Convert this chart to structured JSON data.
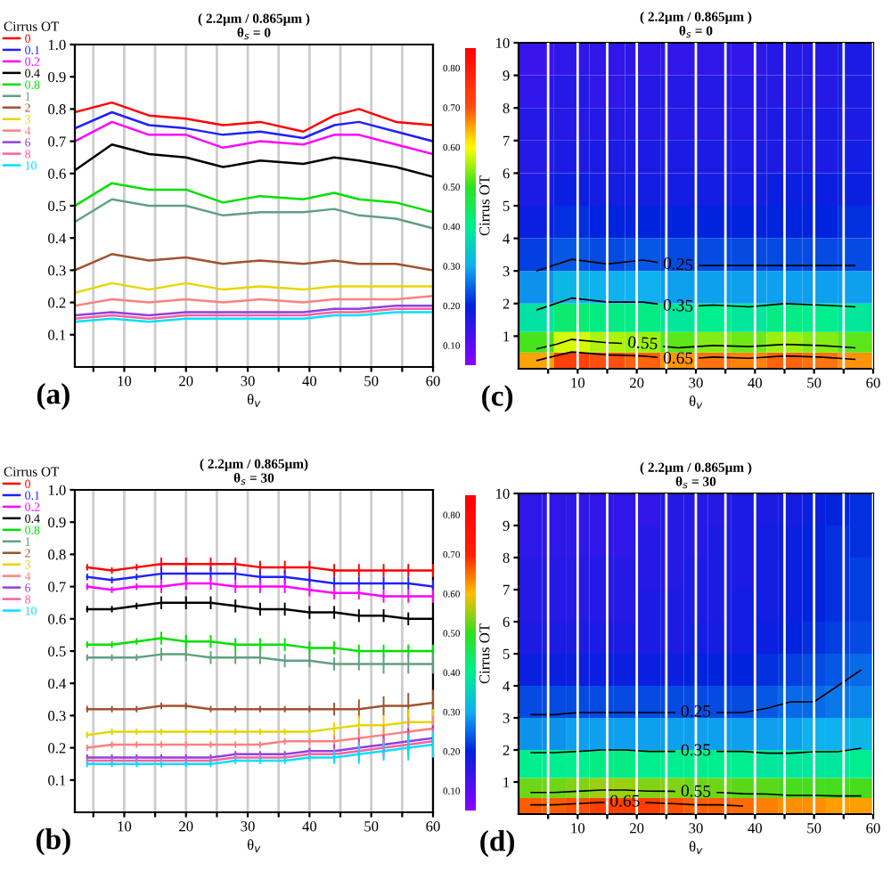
{
  "chart_data": [
    {
      "type": "line",
      "title": "( 2.2μm / 0.865μm )\nθ$_{s}$ = 0",
      "xlabel": "θ$_{v}$",
      "legend_title": "Cirrus OT",
      "legend": "top left",
      "grid": "x",
      "x": [
        2,
        8,
        14,
        20,
        26,
        32,
        39,
        44,
        48,
        54,
        60
      ],
      "xlim": [
        2,
        60
      ],
      "ylim": [
        0,
        1.0
      ],
      "xticks": [
        {
          "value": 5,
          "label": null
        },
        10,
        {
          "value": 15,
          "label": null
        },
        20,
        {
          "value": 25,
          "label": null
        },
        30,
        {
          "value": 35,
          "label": null
        },
        40,
        {
          "value": 45,
          "label": null
        },
        50,
        {
          "value": 55,
          "label": null
        },
        60
      ],
      "yticks": [
        0.1,
        0.2,
        0.3,
        0.4,
        0.5,
        0.6,
        0.7,
        0.8,
        0.9,
        {
          "value": 1.0,
          "label": "1.0"
        }
      ],
      "series": [
        {
          "name": "0",
          "color": "#ff0000",
          "values": [
            0.79,
            0.82,
            0.78,
            0.77,
            0.75,
            0.76,
            0.73,
            0.78,
            0.8,
            0.76,
            0.75
          ]
        },
        {
          "name": "0.1",
          "color": "#2020ff",
          "values": [
            0.74,
            0.79,
            0.75,
            0.74,
            0.72,
            0.73,
            0.71,
            0.75,
            0.76,
            0.73,
            0.7
          ]
        },
        {
          "name": "0.2",
          "color": "#ff00ff",
          "values": [
            0.7,
            0.76,
            0.72,
            0.72,
            0.68,
            0.7,
            0.69,
            0.72,
            0.72,
            0.69,
            0.66
          ]
        },
        {
          "name": "0.4",
          "color": "#000000",
          "values": [
            0.61,
            0.69,
            0.66,
            0.65,
            0.62,
            0.64,
            0.63,
            0.65,
            0.64,
            0.62,
            0.59
          ]
        },
        {
          "name": "0.8",
          "color": "#00e000",
          "values": [
            0.5,
            0.57,
            0.55,
            0.55,
            0.51,
            0.53,
            0.52,
            0.54,
            0.52,
            0.51,
            0.48
          ]
        },
        {
          "name": "1",
          "color": "#60a080",
          "values": [
            0.45,
            0.52,
            0.5,
            0.5,
            0.47,
            0.48,
            0.48,
            0.49,
            0.47,
            0.46,
            0.43
          ]
        },
        {
          "name": "2",
          "color": "#a0522d",
          "values": [
            0.3,
            0.35,
            0.33,
            0.34,
            0.32,
            0.33,
            0.32,
            0.33,
            0.32,
            0.32,
            0.3
          ]
        },
        {
          "name": "3",
          "color": "#e6d600",
          "values": [
            0.23,
            0.26,
            0.24,
            0.26,
            0.24,
            0.25,
            0.24,
            0.25,
            0.25,
            0.25,
            0.25
          ]
        },
        {
          "name": "4",
          "color": "#ff8080",
          "values": [
            0.19,
            0.21,
            0.2,
            0.21,
            0.2,
            0.21,
            0.2,
            0.21,
            0.21,
            0.21,
            0.22
          ]
        },
        {
          "name": "6",
          "color": "#9040e0",
          "values": [
            0.16,
            0.17,
            0.16,
            0.17,
            0.17,
            0.17,
            0.17,
            0.18,
            0.18,
            0.19,
            0.19
          ]
        },
        {
          "name": "8",
          "color": "#ff60a0",
          "values": [
            0.15,
            0.16,
            0.15,
            0.16,
            0.16,
            0.16,
            0.16,
            0.17,
            0.17,
            0.18,
            0.18
          ]
        },
        {
          "name": "10",
          "color": "#00e0ff",
          "values": [
            0.14,
            0.15,
            0.14,
            0.15,
            0.15,
            0.15,
            0.15,
            0.16,
            0.16,
            0.17,
            0.17
          ]
        }
      ],
      "annotations": [
        "(a)"
      ]
    },
    {
      "type": "heatmap",
      "title": "( 2.2μm / 0.865μm )\nθ$_{s}$ = 0",
      "xlabel": "θ$_{v}$",
      "ylabel": "Cirrus OT",
      "grid": "x",
      "x": [
        3,
        9,
        15,
        21,
        27,
        33,
        39,
        45,
        51,
        57
      ],
      "y": [
        0.25,
        0.75,
        1.5,
        2.5,
        3.5,
        4.5,
        5.5,
        6.5,
        7.5,
        8.5,
        9.5
      ],
      "xlim": [
        0,
        60
      ],
      "ylim": [
        0,
        10
      ],
      "xticks": [
        {
          "value": 5,
          "label": null
        },
        10,
        {
          "value": 15,
          "label": null
        },
        20,
        {
          "value": 25,
          "label": null
        },
        30,
        {
          "value": 35,
          "label": null
        },
        40,
        {
          "value": 45,
          "label": null
        },
        50,
        {
          "value": 55,
          "label": null
        },
        60
      ],
      "yticks": [
        1,
        2,
        3,
        4,
        5,
        6,
        7,
        8,
        9,
        10
      ],
      "clim": [
        0.05,
        0.85
      ],
      "cticks": [
        {
          "value": 0.1,
          "label": "0.10"
        },
        {
          "value": 0.2,
          "label": "0.20"
        },
        {
          "value": 0.3,
          "label": "0.30"
        },
        {
          "value": 0.4,
          "label": "0.40"
        },
        {
          "value": 0.5,
          "label": "0.50"
        },
        {
          "value": 0.6,
          "label": "0.60"
        },
        {
          "value": 0.7,
          "label": "0.70"
        },
        {
          "value": 0.8,
          "label": "0.80"
        }
      ],
      "colors": [
        "#8a00ff",
        "#0022dd",
        "#10b0f0",
        "#00ee90",
        "#30e020",
        "#ffff00",
        "#ff5010",
        "#ff0000"
      ],
      "cells": [
        [
          0.65,
          0.73,
          0.7,
          0.69,
          0.66,
          0.68,
          0.67,
          0.69,
          0.68,
          0.66
        ],
        [
          0.51,
          0.58,
          0.56,
          0.55,
          0.52,
          0.54,
          0.53,
          0.55,
          0.54,
          0.52
        ],
        [
          0.38,
          0.43,
          0.41,
          0.41,
          0.39,
          0.4,
          0.39,
          0.41,
          0.4,
          0.39
        ],
        [
          0.28,
          0.31,
          0.3,
          0.3,
          0.29,
          0.29,
          0.29,
          0.29,
          0.29,
          0.29
        ],
        [
          0.22,
          0.24,
          0.23,
          0.24,
          0.23,
          0.23,
          0.23,
          0.23,
          0.23,
          0.23
        ],
        [
          0.19,
          0.21,
          0.2,
          0.2,
          0.2,
          0.2,
          0.2,
          0.2,
          0.2,
          0.21
        ],
        [
          0.17,
          0.19,
          0.18,
          0.18,
          0.18,
          0.18,
          0.18,
          0.19,
          0.19,
          0.19
        ],
        [
          0.16,
          0.17,
          0.17,
          0.17,
          0.17,
          0.17,
          0.17,
          0.17,
          0.17,
          0.18
        ],
        [
          0.16,
          0.16,
          0.16,
          0.16,
          0.16,
          0.16,
          0.16,
          0.17,
          0.17,
          0.17
        ],
        [
          0.15,
          0.16,
          0.15,
          0.16,
          0.16,
          0.16,
          0.16,
          0.16,
          0.16,
          0.17
        ],
        [
          0.14,
          0.15,
          0.15,
          0.15,
          0.15,
          0.15,
          0.15,
          0.16,
          0.16,
          0.17
        ]
      ],
      "annotations": [
        "0.25",
        "0.35",
        "0.55",
        "0.65",
        "(c)"
      ]
    },
    {
      "type": "line",
      "title": "( 2.2μm / 0.865μm)\nθ$_{s}$ = 30",
      "xlabel": "θ$_{v}$",
      "legend_title": "Cirrus OT",
      "legend": "top left",
      "grid": "x",
      "x": [
        4,
        8,
        12,
        16,
        20,
        24,
        28,
        32,
        36,
        40,
        44,
        48,
        52,
        56,
        60
      ],
      "xlim": [
        2,
        60
      ],
      "ylim": [
        0,
        1.0
      ],
      "xticks": [
        {
          "value": 5,
          "label": null
        },
        10,
        {
          "value": 15,
          "label": null
        },
        20,
        {
          "value": 25,
          "label": null
        },
        30,
        {
          "value": 35,
          "label": null
        },
        40,
        {
          "value": 45,
          "label": null
        },
        50,
        {
          "value": 55,
          "label": null
        },
        60
      ],
      "yticks": [
        0.1,
        0.2,
        0.3,
        0.4,
        0.5,
        0.6,
        0.7,
        0.8,
        0.9,
        {
          "value": 1.0,
          "label": "1.0"
        }
      ],
      "series": [
        {
          "name": "0",
          "color": "#ff0000",
          "values": [
            0.76,
            0.75,
            0.76,
            0.77,
            0.77,
            0.77,
            0.77,
            0.76,
            0.76,
            0.76,
            0.75,
            0.75,
            0.75,
            0.75,
            0.75
          ],
          "errors": [
            0.01,
            0.01,
            0.01,
            0.02,
            0.02,
            0.02,
            0.02,
            0.02,
            0.02,
            0.02,
            0.02,
            0.02,
            0.02,
            0.02,
            0.02
          ]
        },
        {
          "name": "0.1",
          "color": "#2020ff",
          "values": [
            0.73,
            0.72,
            0.73,
            0.74,
            0.74,
            0.74,
            0.74,
            0.73,
            0.73,
            0.72,
            0.71,
            0.71,
            0.71,
            0.71,
            0.7
          ],
          "errors": [
            0.01,
            0.01,
            0.01,
            0.02,
            0.02,
            0.02,
            0.02,
            0.02,
            0.02,
            0.02,
            0.02,
            0.02,
            0.02,
            0.02,
            0.02
          ]
        },
        {
          "name": "0.2",
          "color": "#ff00ff",
          "values": [
            0.7,
            0.69,
            0.7,
            0.7,
            0.71,
            0.71,
            0.7,
            0.7,
            0.7,
            0.69,
            0.68,
            0.68,
            0.67,
            0.67,
            0.67
          ],
          "errors": [
            0.01,
            0.01,
            0.01,
            0.02,
            0.02,
            0.02,
            0.02,
            0.02,
            0.02,
            0.02,
            0.02,
            0.02,
            0.02,
            0.02,
            0.02
          ]
        },
        {
          "name": "0.4",
          "color": "#000000",
          "values": [
            0.63,
            0.63,
            0.64,
            0.65,
            0.65,
            0.65,
            0.64,
            0.63,
            0.63,
            0.62,
            0.62,
            0.61,
            0.61,
            0.6,
            0.6
          ],
          "errors": [
            0.01,
            0.01,
            0.01,
            0.02,
            0.02,
            0.02,
            0.02,
            0.02,
            0.02,
            0.02,
            0.02,
            0.02,
            0.02,
            0.02,
            0.02
          ]
        },
        {
          "name": "0.8",
          "color": "#00e000",
          "values": [
            0.52,
            0.52,
            0.53,
            0.54,
            0.53,
            0.53,
            0.52,
            0.52,
            0.52,
            0.51,
            0.51,
            0.5,
            0.5,
            0.5,
            0.5
          ],
          "errors": [
            0.01,
            0.01,
            0.01,
            0.02,
            0.02,
            0.02,
            0.02,
            0.02,
            0.02,
            0.02,
            0.02,
            0.02,
            0.02,
            0.02,
            0.02
          ]
        },
        {
          "name": "1",
          "color": "#60a080",
          "values": [
            0.48,
            0.48,
            0.48,
            0.49,
            0.49,
            0.48,
            0.48,
            0.48,
            0.47,
            0.47,
            0.46,
            0.46,
            0.46,
            0.46,
            0.46
          ],
          "errors": [
            0.01,
            0.01,
            0.01,
            0.02,
            0.02,
            0.02,
            0.02,
            0.02,
            0.02,
            0.02,
            0.02,
            0.02,
            0.03,
            0.03,
            0.03
          ]
        },
        {
          "name": "2",
          "color": "#a0522d",
          "values": [
            0.32,
            0.32,
            0.32,
            0.33,
            0.33,
            0.32,
            0.32,
            0.32,
            0.32,
            0.32,
            0.32,
            0.32,
            0.33,
            0.33,
            0.34
          ],
          "errors": [
            0.01,
            0.01,
            0.01,
            0.01,
            0.01,
            0.01,
            0.01,
            0.01,
            0.01,
            0.01,
            0.02,
            0.03,
            0.03,
            0.04,
            0.04
          ]
        },
        {
          "name": "3",
          "color": "#e6d600",
          "values": [
            0.24,
            0.25,
            0.25,
            0.25,
            0.25,
            0.25,
            0.25,
            0.25,
            0.25,
            0.25,
            0.26,
            0.27,
            0.27,
            0.28,
            0.28
          ],
          "errors": [
            0.01,
            0.01,
            0.01,
            0.01,
            0.01,
            0.01,
            0.01,
            0.01,
            0.01,
            0.01,
            0.02,
            0.03,
            0.03,
            0.04,
            0.04
          ]
        },
        {
          "name": "4",
          "color": "#ff8080",
          "values": [
            0.2,
            0.21,
            0.21,
            0.21,
            0.21,
            0.21,
            0.21,
            0.21,
            0.22,
            0.22,
            0.22,
            0.23,
            0.24,
            0.25,
            0.26
          ],
          "errors": [
            0.01,
            0.01,
            0.01,
            0.01,
            0.01,
            0.01,
            0.01,
            0.01,
            0.01,
            0.01,
            0.02,
            0.03,
            0.03,
            0.04,
            0.04
          ]
        },
        {
          "name": "6",
          "color": "#9040e0",
          "values": [
            0.17,
            0.17,
            0.17,
            0.17,
            0.17,
            0.17,
            0.18,
            0.18,
            0.18,
            0.19,
            0.19,
            0.2,
            0.21,
            0.22,
            0.23
          ],
          "errors": [
            0.01,
            0.01,
            0.01,
            0.01,
            0.01,
            0.01,
            0.01,
            0.01,
            0.01,
            0.01,
            0.02,
            0.03,
            0.03,
            0.04,
            0.04
          ]
        },
        {
          "name": "8",
          "color": "#ff60a0",
          "values": [
            0.16,
            0.16,
            0.16,
            0.16,
            0.16,
            0.16,
            0.17,
            0.17,
            0.17,
            0.18,
            0.18,
            0.19,
            0.2,
            0.21,
            0.22
          ],
          "errors": [
            0.01,
            0.01,
            0.01,
            0.01,
            0.01,
            0.01,
            0.01,
            0.01,
            0.01,
            0.01,
            0.02,
            0.03,
            0.03,
            0.04,
            0.04
          ]
        },
        {
          "name": "10",
          "color": "#00e0ff",
          "values": [
            0.15,
            0.15,
            0.15,
            0.15,
            0.15,
            0.15,
            0.16,
            0.16,
            0.16,
            0.17,
            0.17,
            0.18,
            0.19,
            0.2,
            0.21
          ],
          "errors": [
            0.01,
            0.01,
            0.01,
            0.01,
            0.01,
            0.01,
            0.01,
            0.01,
            0.01,
            0.01,
            0.02,
            0.03,
            0.03,
            0.04,
            0.04
          ]
        }
      ],
      "annotations": [
        "(b)"
      ]
    },
    {
      "type": "heatmap",
      "title": "( 2.2μm / 0.865μm )\nθ$_{s}$ = 30",
      "xlabel": "θ$_{v}$",
      "ylabel": "Cirrus OT",
      "grid": "x",
      "x": [
        2,
        6,
        10,
        14,
        18,
        22,
        26,
        30,
        34,
        38,
        42,
        46,
        50,
        54,
        58
      ],
      "y": [
        0.25,
        0.75,
        1.5,
        2.5,
        3.5,
        4.5,
        5.5,
        6.5,
        7.5,
        8.5,
        9.5
      ],
      "xlim": [
        0,
        60
      ],
      "ylim": [
        0,
        10
      ],
      "xticks": [
        {
          "value": 5,
          "label": null
        },
        10,
        {
          "value": 15,
          "label": null
        },
        20,
        {
          "value": 25,
          "label": null
        },
        30,
        {
          "value": 35,
          "label": null
        },
        40,
        {
          "value": 45,
          "label": null
        },
        50,
        {
          "value": 55,
          "label": null
        },
        60
      ],
      "yticks": [
        1,
        2,
        3,
        4,
        5,
        6,
        7,
        8,
        9,
        10
      ],
      "clim": [
        0.05,
        0.85
      ],
      "cticks": [
        {
          "value": 0.1,
          "label": "0.10"
        },
        {
          "value": 0.2,
          "label": "0.20"
        },
        {
          "value": 0.3,
          "label": "0.30"
        },
        {
          "value": 0.4,
          "label": "0.40"
        },
        {
          "value": 0.5,
          "label": "0.50"
        },
        {
          "value": 0.6,
          "label": "0.60"
        },
        {
          "value": 0.7,
          "label": "0.70"
        },
        {
          "value": 0.8,
          "label": "0.80"
        }
      ],
      "colors": [
        "#8a00ff",
        "#0022dd",
        "#10b0f0",
        "#00ee90",
        "#30e020",
        "#ffc000",
        "#ff2000",
        "#ff0000"
      ],
      "cells": [
        [
          0.66,
          0.66,
          0.67,
          0.68,
          0.68,
          0.68,
          0.67,
          0.66,
          0.66,
          0.65,
          0.64,
          0.63,
          0.63,
          0.62,
          0.62
        ],
        [
          0.53,
          0.53,
          0.54,
          0.55,
          0.55,
          0.54,
          0.54,
          0.53,
          0.53,
          0.52,
          0.52,
          0.51,
          0.51,
          0.51,
          0.51
        ],
        [
          0.4,
          0.4,
          0.4,
          0.41,
          0.41,
          0.4,
          0.4,
          0.4,
          0.4,
          0.4,
          0.39,
          0.39,
          0.39,
          0.39,
          0.4
        ],
        [
          0.28,
          0.28,
          0.29,
          0.29,
          0.29,
          0.29,
          0.29,
          0.29,
          0.29,
          0.29,
          0.29,
          0.29,
          0.3,
          0.3,
          0.31
        ],
        [
          0.23,
          0.23,
          0.23,
          0.23,
          0.23,
          0.23,
          0.23,
          0.23,
          0.23,
          0.23,
          0.24,
          0.25,
          0.25,
          0.26,
          0.27
        ],
        [
          0.19,
          0.19,
          0.19,
          0.19,
          0.19,
          0.19,
          0.19,
          0.2,
          0.2,
          0.2,
          0.21,
          0.22,
          0.23,
          0.24,
          0.25
        ],
        [
          0.17,
          0.17,
          0.17,
          0.17,
          0.17,
          0.17,
          0.17,
          0.18,
          0.18,
          0.18,
          0.19,
          0.2,
          0.21,
          0.22,
          0.23
        ],
        [
          0.16,
          0.16,
          0.16,
          0.16,
          0.16,
          0.17,
          0.17,
          0.17,
          0.17,
          0.18,
          0.18,
          0.19,
          0.2,
          0.21,
          0.22
        ],
        [
          0.16,
          0.16,
          0.16,
          0.16,
          0.16,
          0.16,
          0.16,
          0.17,
          0.17,
          0.17,
          0.18,
          0.19,
          0.2,
          0.21,
          0.22
        ],
        [
          0.15,
          0.15,
          0.15,
          0.15,
          0.15,
          0.16,
          0.16,
          0.16,
          0.17,
          0.17,
          0.18,
          0.19,
          0.2,
          0.21,
          0.21
        ],
        [
          0.15,
          0.15,
          0.15,
          0.15,
          0.15,
          0.15,
          0.16,
          0.16,
          0.16,
          0.17,
          0.17,
          0.18,
          0.19,
          0.2,
          0.21
        ]
      ],
      "annotations": [
        "0.25",
        "0.35",
        "0.55",
        "0.65",
        "(d)"
      ]
    }
  ]
}
